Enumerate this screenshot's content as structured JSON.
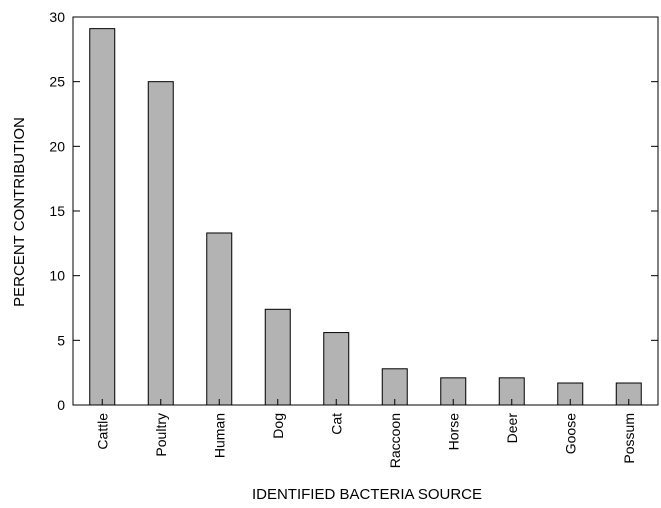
{
  "chart_data": {
    "type": "bar",
    "title": "",
    "xlabel": "IDENTIFIED BACTERIA SOURCE",
    "ylabel": "PERCENT CONTRIBUTION",
    "categories": [
      "Cattle",
      "Poultry",
      "Human",
      "Dog",
      "Cat",
      "Raccoon",
      "Horse",
      "Deer",
      "Goose",
      "Possum"
    ],
    "values": [
      29.1,
      25.0,
      13.3,
      7.4,
      5.6,
      2.8,
      2.1,
      2.1,
      1.7,
      1.7
    ],
    "ylim": [
      0,
      30
    ],
    "yticks": [
      0,
      5,
      10,
      15,
      20,
      25,
      30
    ],
    "grid": false,
    "legend": "none",
    "colors": {
      "bar_fill": "#b3b3b3",
      "bar_stroke": "#000000",
      "axis": "#000000",
      "text": "#000000"
    }
  }
}
